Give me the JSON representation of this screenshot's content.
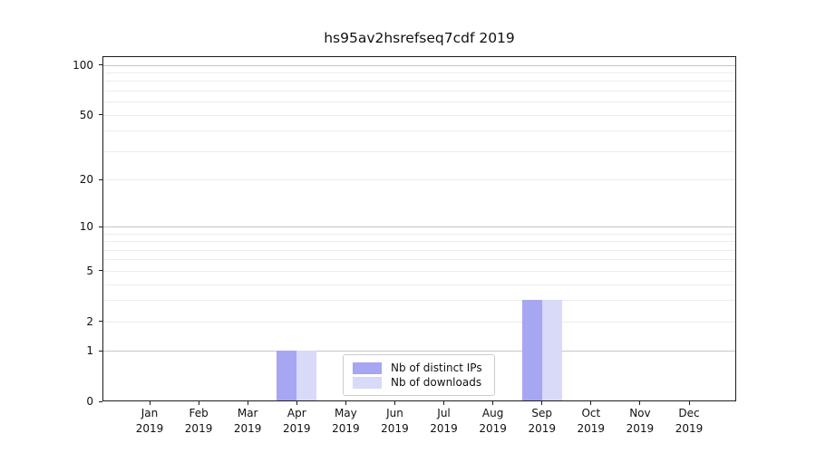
{
  "chart_data": {
    "type": "bar",
    "title": "hs95av2hsrefseq7cdf 2019",
    "categories": [
      "Jan",
      "Feb",
      "Mar",
      "Apr",
      "May",
      "Jun",
      "Jul",
      "Aug",
      "Sep",
      "Oct",
      "Nov",
      "Dec"
    ],
    "category_year": "2019",
    "series": [
      {
        "name": "Nb of distinct IPs",
        "color": "#a6a6f2",
        "values": [
          0,
          0,
          0,
          1,
          0,
          0,
          0,
          0,
          3,
          0,
          0,
          0
        ]
      },
      {
        "name": "Nb of downloads",
        "color": "#d9d9f8",
        "values": [
          0,
          0,
          0,
          1,
          0,
          0,
          0,
          0,
          3,
          0,
          0,
          0
        ]
      }
    ],
    "xlabel": "",
    "ylabel": "",
    "yscale": "log1p",
    "ylim": [
      0,
      113
    ],
    "yticks": [
      0,
      1,
      2,
      5,
      10,
      20,
      50,
      100
    ],
    "grid": "on",
    "grid_major": [
      1,
      10,
      100
    ],
    "grid_minor": [
      2,
      3,
      4,
      5,
      6,
      7,
      8,
      9,
      20,
      30,
      40,
      50,
      60,
      70,
      80,
      90
    ],
    "legend_position": "lower center"
  },
  "colors": {
    "background": "#ffffff",
    "text": "#111111",
    "axis": "#1c1c1c",
    "grid_major": "#c4c4c4",
    "grid_minor": "#ececec",
    "legend_border": "#cccccc"
  }
}
